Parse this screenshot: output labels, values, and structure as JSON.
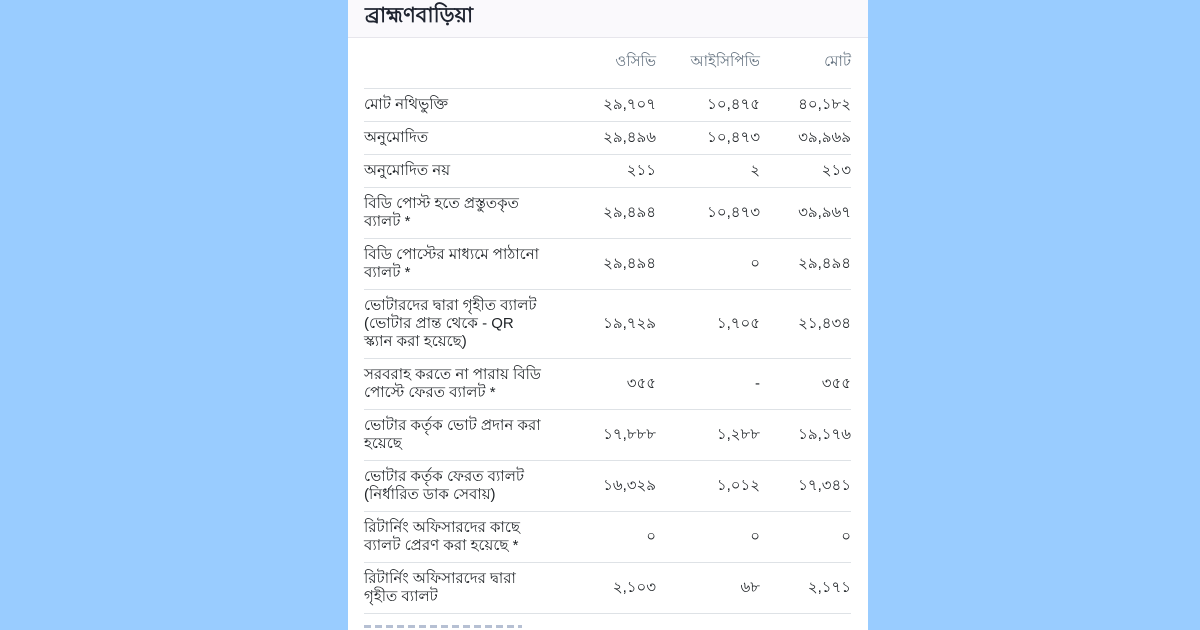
{
  "header": {
    "title": "ব্রাহ্মণবাড়িয়া"
  },
  "table": {
    "column_headers": [
      "ওসিভি",
      "আইসিপিভি",
      "মোট"
    ],
    "rows": [
      {
        "label": "মোট নথিভুক্তি",
        "values": [
          "২৯,৭০৭",
          "১০,৪৭৫",
          "৪০,১৮২"
        ]
      },
      {
        "label": "অনুমোদিত",
        "values": [
          "২৯,৪৯৬",
          "১০,৪৭৩",
          "৩৯,৯৬৯"
        ]
      },
      {
        "label": "অনুমোদিত নয়",
        "values": [
          "২১১",
          "২",
          "২১৩"
        ]
      },
      {
        "label": "বিডি পোস্ট হতে প্রস্তুতকৃত ব্যালট *",
        "values": [
          "২৯,৪৯৪",
          "১০,৪৭৩",
          "৩৯,৯৬৭"
        ]
      },
      {
        "label": "বিডি পোস্টের মাধ্যমে পাঠানো ব্যালট *",
        "values": [
          "২৯,৪৯৪",
          "০",
          "২৯,৪৯৪"
        ]
      },
      {
        "label": "ভোটারদের দ্বারা গৃহীত ব্যালট (ভোটার প্রান্ত থেকে - QR স্ক্যান করা হয়েছে)",
        "values": [
          "১৯,৭২৯",
          "১,৭০৫",
          "২১,৪৩৪"
        ]
      },
      {
        "label": "সরবরাহ করতে না পারায় বিডি পোস্টে ফেরত ব্যালট *",
        "values": [
          "৩৫৫",
          "-",
          "৩৫৫"
        ]
      },
      {
        "label": "ভোটার কর্তৃক ভোট প্রদান করা হয়েছে",
        "values": [
          "১৭,৮৮৮",
          "১,২৮৮",
          "১৯,১৭৬"
        ]
      },
      {
        "label": "ভোটার কর্তৃক ফেরত ব্যালট (নির্ধারিত ডাক সেবায়)",
        "values": [
          "১৬,৩২৯",
          "১,০১২",
          "১৭,৩৪১"
        ]
      },
      {
        "label": "রিটার্নিং অফিসারদের কাছে ব্যালট প্রেরণ করা হয়েছে *",
        "values": [
          "০",
          "০",
          "০"
        ]
      },
      {
        "label": "রিটার্নিং অফিসারদের দ্বারা গৃহীত ব্যালট",
        "values": [
          "২,১০৩",
          "৬৮",
          "২,১৭১"
        ]
      }
    ]
  },
  "colors": {
    "page_background": "#99ccff",
    "card_background": "#ffffff",
    "title_bar_background": "#faf9fc",
    "title_text": "#1f2430",
    "column_header_text": "#62707e",
    "body_text": "#212529",
    "row_border": "#dee2e6"
  }
}
